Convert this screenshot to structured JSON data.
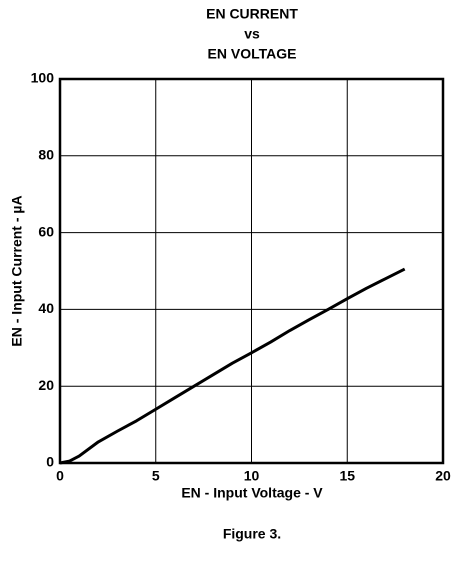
{
  "chart_data": {
    "type": "line",
    "title": [
      "EN CURRENT",
      "vs",
      "EN VOLTAGE"
    ],
    "xlabel": "EN - Input Voltage - V",
    "ylabel": "EN - Input Current - µA",
    "caption": "Figure 3.",
    "x": [
      0,
      0.5,
      1,
      2,
      3,
      4,
      5,
      6,
      7,
      8,
      9,
      10,
      11,
      12,
      13,
      14,
      15,
      16,
      17,
      18
    ],
    "series": [
      {
        "color": "#000000",
        "values": [
          0,
          0.5,
          1.8,
          5.5,
          8.3,
          11,
          14,
          17,
          20,
          23,
          26,
          28.7,
          31.5,
          34.5,
          37.3,
          40,
          42.8,
          45.5,
          48,
          50.5
        ]
      }
    ],
    "xlim": [
      0,
      20
    ],
    "xticks": [
      0,
      5,
      10,
      15,
      20
    ],
    "ylim": [
      0,
      100
    ],
    "yticks": [
      0,
      20,
      40,
      60,
      80,
      100
    ],
    "grid": true
  }
}
